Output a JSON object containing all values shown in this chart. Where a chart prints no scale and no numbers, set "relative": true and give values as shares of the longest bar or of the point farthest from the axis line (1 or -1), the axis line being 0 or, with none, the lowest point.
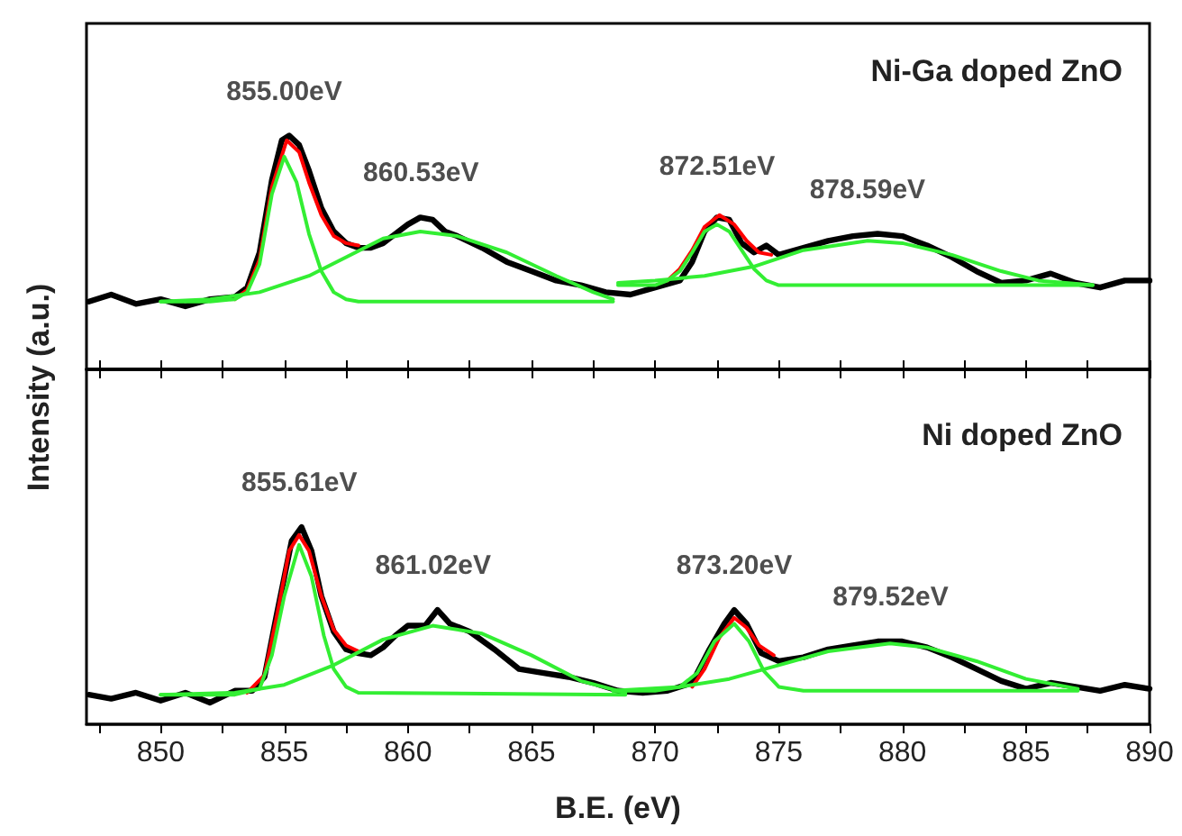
{
  "chart_data": [
    {
      "type": "line",
      "relative": true,
      "title": "Ni-Ga doped ZnO",
      "xlim": [
        847,
        890
      ],
      "xticks": [
        {
          "value": 847.5,
          "label": null
        },
        850,
        {
          "value": 852.5,
          "label": null
        },
        855,
        {
          "value": 857.5,
          "label": null
        },
        860,
        {
          "value": 862.5,
          "label": null
        },
        865,
        {
          "value": 867.5,
          "label": null
        },
        870,
        {
          "value": 872.5,
          "label": null
        },
        875,
        {
          "value": 877.5,
          "label": null
        },
        880,
        {
          "value": 882.5,
          "label": null
        },
        885,
        {
          "value": 887.5,
          "label": null
        },
        890
      ],
      "tick_labels": false,
      "grid": false,
      "marker": "none",
      "line_style": "solid",
      "annotations": [
        {
          "text": "855.00eV",
          "x": 855,
          "y": 1.0
        },
        {
          "text": "860.53eV",
          "x": 860.53,
          "y": 0.65
        },
        {
          "text": "872.51eV",
          "x": 872.51,
          "y": 0.68
        },
        {
          "text": "878.59eV",
          "x": 878.59,
          "y": 0.58
        }
      ],
      "series": [
        {
          "color": "#000000",
          "x": [
            847.1,
            848,
            849,
            850,
            851,
            852,
            853,
            853.5,
            854,
            854.5,
            854.9,
            855.2,
            855.6,
            856,
            856.5,
            857,
            857.5,
            858,
            858.5,
            859,
            859.5,
            860,
            860.5,
            861,
            861.5,
            862,
            863,
            864,
            865,
            866,
            867,
            868,
            869,
            870,
            871,
            871.5,
            872,
            872.5,
            873,
            873.5,
            874,
            874.5,
            875,
            876,
            877,
            878,
            879,
            880,
            881,
            882,
            883,
            884,
            885,
            886,
            887,
            888,
            889,
            890
          ],
          "values": [
            0.29,
            0.32,
            0.28,
            0.3,
            0.27,
            0.3,
            0.31,
            0.35,
            0.5,
            0.81,
            0.98,
            1.0,
            0.96,
            0.85,
            0.69,
            0.59,
            0.54,
            0.52,
            0.52,
            0.54,
            0.58,
            0.62,
            0.65,
            0.64,
            0.59,
            0.57,
            0.52,
            0.46,
            0.42,
            0.38,
            0.36,
            0.33,
            0.32,
            0.35,
            0.38,
            0.46,
            0.59,
            0.65,
            0.64,
            0.54,
            0.5,
            0.53,
            0.49,
            0.52,
            0.55,
            0.57,
            0.58,
            0.57,
            0.53,
            0.48,
            0.42,
            0.37,
            0.38,
            0.41,
            0.37,
            0.35,
            0.38,
            0.38
          ]
        },
        {
          "color": "#ff0000",
          "x": [
            853,
            853.5,
            854,
            854.5,
            855.1,
            855.6,
            856,
            856.5,
            857,
            857.5,
            858
          ],
          "values": [
            0.3,
            0.34,
            0.47,
            0.78,
            0.98,
            0.93,
            0.8,
            0.66,
            0.57,
            0.54,
            0.53
          ]
        },
        {
          "color": "#ff0000",
          "x": [
            870.5,
            871,
            871.5,
            872,
            872.6,
            873.2,
            873.7,
            874.2,
            874.7
          ],
          "values": [
            0.38,
            0.43,
            0.51,
            0.61,
            0.66,
            0.62,
            0.55,
            0.5,
            0.49
          ]
        },
        {
          "color": "#33ee33",
          "x": [
            850,
            852,
            853,
            853.5,
            854,
            854.5,
            855,
            855.5,
            856,
            856.5,
            857,
            857.5,
            858,
            868.3
          ],
          "values": [
            0.29,
            0.29,
            0.3,
            0.33,
            0.45,
            0.75,
            0.91,
            0.8,
            0.58,
            0.42,
            0.33,
            0.3,
            0.29,
            0.29
          ]
        },
        {
          "color": "#33ee33",
          "x": [
            850,
            852,
            854,
            856,
            857.5,
            859,
            860.5,
            862,
            864,
            866,
            867.5,
            868.3
          ],
          "values": [
            0.29,
            0.3,
            0.33,
            0.4,
            0.48,
            0.56,
            0.59,
            0.57,
            0.5,
            0.4,
            0.33,
            0.3
          ]
        },
        {
          "color": "#33ee33",
          "x": [
            868.5,
            870,
            870.5,
            871,
            871.5,
            872,
            872.5,
            873,
            873.5,
            874,
            874.5,
            875,
            876,
            887.7
          ],
          "values": [
            0.36,
            0.36,
            0.38,
            0.42,
            0.5,
            0.59,
            0.62,
            0.59,
            0.51,
            0.43,
            0.38,
            0.36,
            0.36,
            0.36
          ]
        },
        {
          "color": "#33ee33",
          "x": [
            868.5,
            870,
            872,
            874,
            876,
            878.6,
            880,
            882,
            884,
            885.5,
            887.7
          ],
          "values": [
            0.37,
            0.38,
            0.4,
            0.44,
            0.51,
            0.55,
            0.54,
            0.49,
            0.42,
            0.38,
            0.36
          ]
        }
      ]
    },
    {
      "type": "line",
      "relative": true,
      "title": "Ni doped ZnO",
      "xlabel": "B.E. (eV)",
      "ylabel": "Intensity (a.u.)",
      "xlim": [
        847,
        890
      ],
      "xticks": [
        {
          "value": 847.5,
          "label": null
        },
        850,
        {
          "value": 852.5,
          "label": null
        },
        855,
        {
          "value": 857.5,
          "label": null
        },
        860,
        {
          "value": 862.5,
          "label": null
        },
        865,
        {
          "value": 867.5,
          "label": null
        },
        870,
        {
          "value": 872.5,
          "label": null
        },
        875,
        {
          "value": 877.5,
          "label": null
        },
        880,
        {
          "value": 882.5,
          "label": null
        },
        885,
        {
          "value": 887.5,
          "label": null
        },
        890
      ],
      "tick_labels": "x",
      "grid": false,
      "marker": "none",
      "line_style": "solid",
      "annotations": [
        {
          "text": "855.61eV",
          "x": 855.61,
          "y": 1.0
        },
        {
          "text": "861.02eV",
          "x": 861.02,
          "y": 0.58
        },
        {
          "text": "873.20eV",
          "x": 873.2,
          "y": 0.58
        },
        {
          "text": "879.52eV",
          "x": 879.52,
          "y": 0.42
        }
      ],
      "series": [
        {
          "color": "#000000",
          "x": [
            847.1,
            848,
            849,
            850,
            851,
            852,
            853,
            853.7,
            854.2,
            854.7,
            855.3,
            855.7,
            856.1,
            856.5,
            857,
            857.5,
            858,
            858.5,
            859,
            859.5,
            860,
            860.7,
            861.2,
            861.7,
            862.5,
            863.5,
            864.5,
            865.5,
            866.5,
            867.5,
            868.5,
            869.5,
            870.5,
            871.5,
            872.2,
            872.8,
            873.2,
            873.7,
            874.3,
            875,
            876,
            877,
            878,
            879,
            880,
            881,
            882,
            883,
            884,
            885,
            886,
            887,
            888,
            889,
            890
          ],
          "values": [
            0.15,
            0.13,
            0.16,
            0.12,
            0.16,
            0.11,
            0.17,
            0.17,
            0.24,
            0.56,
            0.93,
            1.0,
            0.88,
            0.65,
            0.47,
            0.38,
            0.36,
            0.35,
            0.39,
            0.45,
            0.5,
            0.5,
            0.58,
            0.51,
            0.47,
            0.38,
            0.28,
            0.26,
            0.24,
            0.21,
            0.17,
            0.16,
            0.17,
            0.21,
            0.38,
            0.51,
            0.58,
            0.51,
            0.36,
            0.32,
            0.34,
            0.38,
            0.4,
            0.42,
            0.42,
            0.39,
            0.34,
            0.28,
            0.22,
            0.18,
            0.21,
            0.19,
            0.17,
            0.2,
            0.18
          ]
        },
        {
          "color": "#ff0000",
          "x": [
            853.5,
            854.2,
            854.7,
            855.2,
            855.6,
            856,
            856.5,
            857,
            857.5,
            858
          ],
          "values": [
            0.16,
            0.25,
            0.55,
            0.88,
            0.96,
            0.88,
            0.65,
            0.48,
            0.4,
            0.37
          ]
        },
        {
          "color": "#ff0000",
          "x": [
            871.5,
            872,
            872.6,
            873.2,
            873.7,
            874.2,
            874.8
          ],
          "values": [
            0.19,
            0.28,
            0.44,
            0.54,
            0.49,
            0.4,
            0.35
          ]
        },
        {
          "color": "#33ee33",
          "x": [
            850,
            853,
            854,
            854.5,
            855,
            855.6,
            856.1,
            856.6,
            857,
            857.5,
            858,
            868.8
          ],
          "values": [
            0.15,
            0.15,
            0.18,
            0.35,
            0.65,
            0.91,
            0.75,
            0.45,
            0.28,
            0.19,
            0.16,
            0.15
          ]
        },
        {
          "color": "#33ee33",
          "x": [
            850,
            853,
            855,
            857,
            859,
            861,
            863,
            865,
            867,
            868.8
          ],
          "values": [
            0.15,
            0.16,
            0.2,
            0.3,
            0.43,
            0.5,
            0.46,
            0.35,
            0.22,
            0.16
          ]
        },
        {
          "color": "#33ee33",
          "x": [
            868.3,
            870,
            871,
            871.7,
            872.4,
            873.2,
            873.8,
            874.4,
            875,
            876,
            887.1
          ],
          "values": [
            0.17,
            0.17,
            0.19,
            0.26,
            0.42,
            0.51,
            0.42,
            0.27,
            0.19,
            0.17,
            0.17
          ]
        },
        {
          "color": "#33ee33",
          "x": [
            868.3,
            871,
            873,
            875,
            877,
            879.5,
            881,
            883,
            885,
            887.1
          ],
          "values": [
            0.17,
            0.19,
            0.23,
            0.3,
            0.37,
            0.41,
            0.39,
            0.32,
            0.23,
            0.18
          ]
        }
      ]
    }
  ]
}
